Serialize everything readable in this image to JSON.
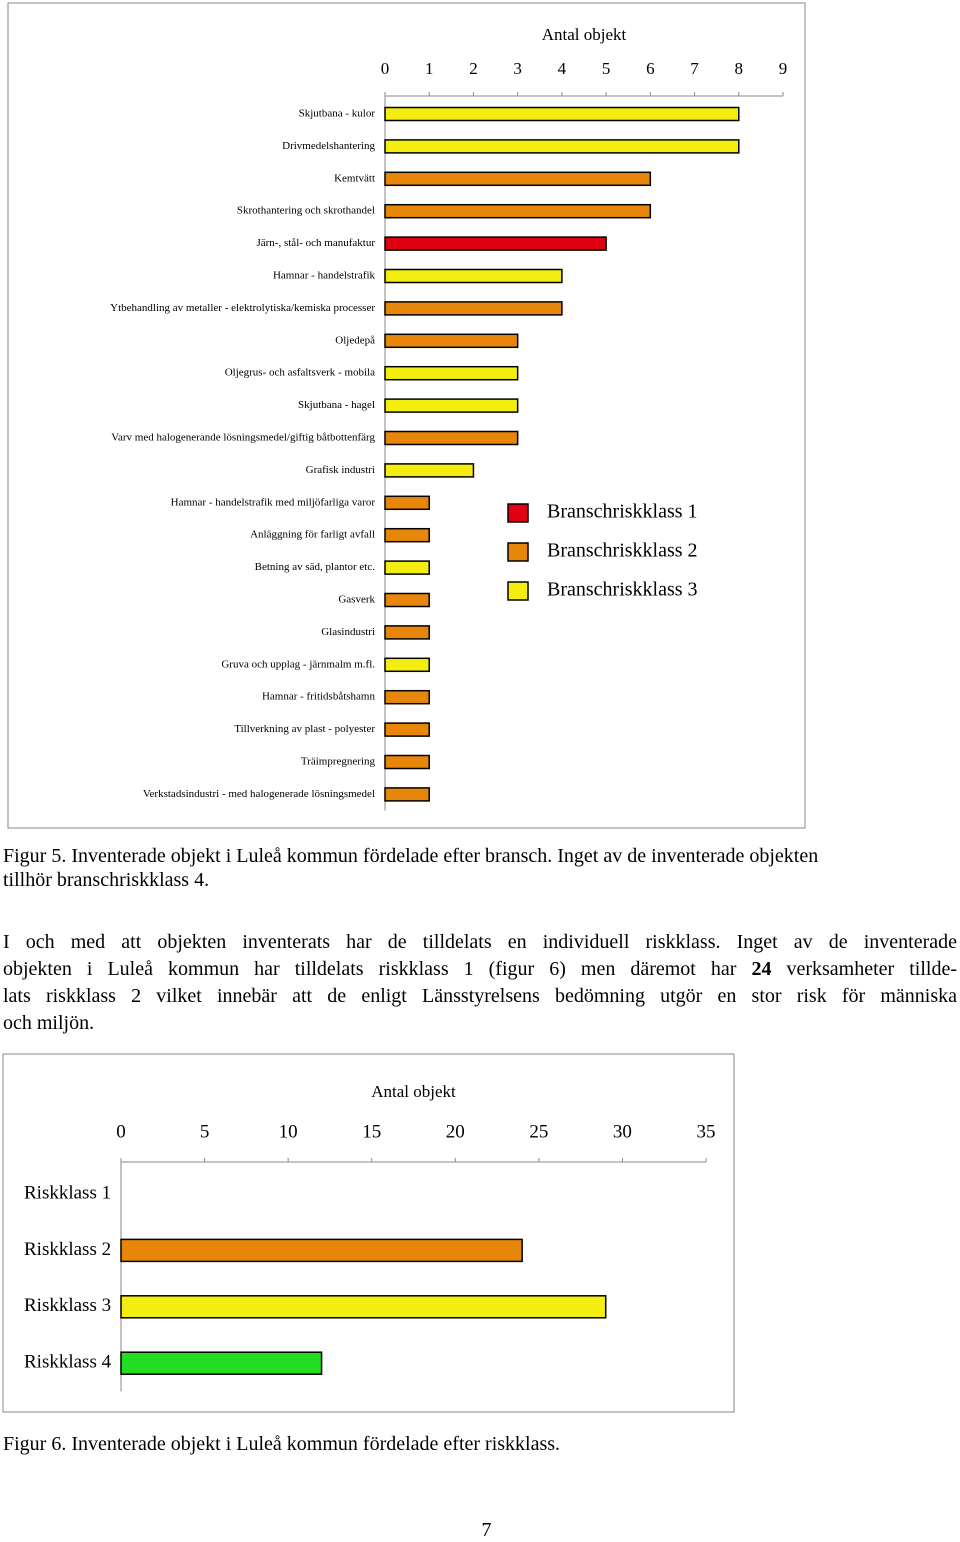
{
  "chart_data": [
    {
      "type": "hbar",
      "xlabel": "Antal objekt",
      "categories": [
        "Skjutbana - kulor",
        "Drivmedelshantering",
        "Kemtvätt",
        "Skrothantering och skrothandel",
        "Järn-, stål- och manufaktur",
        "Hamnar - handelstrafik",
        "Ytbehandling av metaller - elektrolytiska/kemiska processer",
        "Oljedepå",
        "Oljegrus- och asfaltsverk - mobila",
        "Skjutbana - hagel",
        "Varv med halogenerande lösningsmedel/giftig båtbottenfärg",
        "Grafisk industri",
        "Hamnar - handelstrafik med miljöfarliga varor",
        "Anläggning för farligt avfall",
        "Betning av säd, plantor etc.",
        "Gasverk",
        "Glasindustri",
        "Gruva och upplag - järnmalm m.fl.",
        "Hamnar - fritidsbåtshamn",
        "Tillverkning av plast - polyester",
        "Träimpregnering",
        "Verkstadsindustri - med halogenerade lösningsmedel"
      ],
      "series": [
        {
          "name": "Branschriskklass 1",
          "color": "#e00010",
          "values": [
            null,
            null,
            null,
            null,
            5,
            null,
            null,
            null,
            null,
            null,
            null,
            null,
            null,
            null,
            null,
            null,
            null,
            null,
            null,
            null,
            null,
            null
          ]
        },
        {
          "name": "Branschriskklass 2",
          "color": "#e8860a",
          "values": [
            null,
            null,
            6,
            6,
            null,
            null,
            4,
            3,
            null,
            null,
            3,
            null,
            1,
            1,
            null,
            1,
            1,
            null,
            1,
            1,
            1,
            1
          ]
        },
        {
          "name": "Branschriskklass 3",
          "color": "#f4ee10",
          "values": [
            8,
            8,
            null,
            null,
            null,
            4,
            null,
            null,
            3,
            3,
            null,
            2,
            null,
            null,
            1,
            null,
            null,
            1,
            null,
            null,
            null,
            null
          ]
        }
      ],
      "xlim": [
        0,
        9
      ],
      "xticks": [
        0,
        1,
        2,
        3,
        4,
        5,
        6,
        7,
        8,
        9
      ]
    },
    {
      "type": "hbar",
      "xlabel": "Antal objekt",
      "categories": [
        "Riskklass 1",
        "Riskklass 2",
        "Riskklass 3",
        "Riskklass 4"
      ],
      "values": [
        0,
        24,
        29,
        12
      ],
      "colors": [
        "#e00010",
        "#e8860a",
        "#f4ee10",
        "#22dd22"
      ],
      "xlim": [
        0,
        35
      ],
      "xticks": [
        0,
        5,
        10,
        15,
        20,
        25,
        30,
        35
      ]
    }
  ],
  "caption5": [
    "Figur 5. Inventerade objekt i Luleå kommun fördelade efter bransch. Inget av de inventerade objekten",
    "tillhör branschriskklass 4."
  ],
  "paragraph": [
    [
      {
        "text": "I och med att objekten inventerats har de tilldelats en individuell riskklass. Inget av de inventerade"
      }
    ],
    [
      {
        "text": "objekten i Luleå kommun har tilldelats riskklass 1 (figur 6) men däremot har "
      },
      {
        "text": "24",
        "bold": true
      },
      {
        "text": " verksamheter tillde-"
      }
    ],
    [
      {
        "text": "lats riskklass 2 vilket innebär att de enligt Länsstyrelsens bedömning utgör en stor risk för människa"
      }
    ],
    [
      {
        "text": "och miljön."
      }
    ]
  ],
  "caption6": "Figur 6. Inventerade objekt i Luleå kommun fördelade efter riskklass.",
  "page_number": "7"
}
